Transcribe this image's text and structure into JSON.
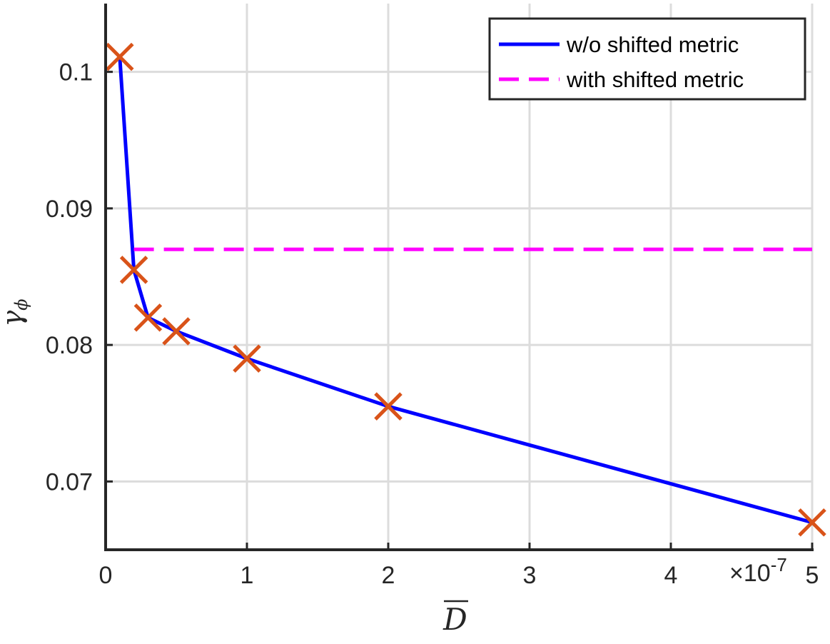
{
  "chart_data": {
    "type": "line",
    "xlabel": "D",
    "ylabel_main": "γ",
    "ylabel_sub": "ϕ",
    "x_multiplier_label": "×10",
    "x_multiplier_exp": "-7",
    "x_categories": [
      "0",
      "1",
      "2",
      "3",
      "4",
      "5"
    ],
    "y_ticks": [
      0.07,
      0.08,
      0.09,
      0.1
    ],
    "y_tick_labels": [
      "0.07",
      "0.08",
      "0.09",
      "0.1"
    ],
    "ylim": [
      0.065,
      0.105
    ],
    "grid": true,
    "legend_position": "top-right",
    "series": [
      {
        "name": "w/o shifted metric",
        "style": "solid",
        "color": "#0000ff",
        "x": [
          0.1,
          0.2,
          0.3,
          0.5,
          1,
          2,
          5
        ],
        "y": [
          0.1011,
          0.0855,
          0.082,
          0.081,
          0.079,
          0.0755,
          0.067
        ]
      },
      {
        "name": "with shifted metric",
        "style": "dashed",
        "color": "#ff00ff",
        "x": [
          0.2,
          5
        ],
        "y": [
          0.087,
          0.087
        ]
      }
    ],
    "markers": {
      "shape": "cross",
      "color": "#d95319",
      "x": [
        0.1,
        0.2,
        0.3,
        0.5,
        1,
        2,
        5
      ],
      "y": [
        0.1011,
        0.0855,
        0.082,
        0.081,
        0.079,
        0.0755,
        0.067
      ]
    }
  }
}
